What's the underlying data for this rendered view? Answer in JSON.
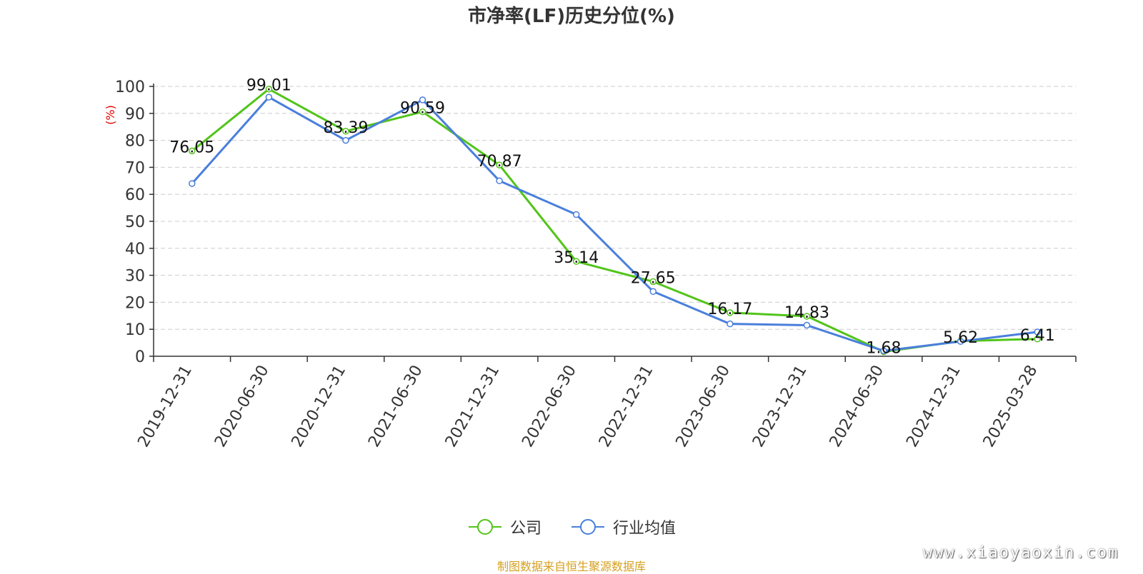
{
  "chart_data": {
    "type": "line",
    "title": "市净率(LF)历史分位(%)",
    "ylabel": "(%)",
    "xlabel": "",
    "ylim": [
      0,
      100
    ],
    "yticks": [
      0,
      10,
      20,
      30,
      40,
      50,
      60,
      70,
      80,
      90,
      100
    ],
    "categories": [
      "2019-12-31",
      "2020-06-30",
      "2020-12-31",
      "2021-06-30",
      "2021-12-31",
      "2022-06-30",
      "2022-12-31",
      "2023-06-30",
      "2023-12-31",
      "2024-06-30",
      "2024-12-31",
      "2025-03-28"
    ],
    "series": [
      {
        "name": "公司",
        "color": "#52c41a",
        "values": [
          76.05,
          99.01,
          83.39,
          90.59,
          70.87,
          35.14,
          27.65,
          16.17,
          14.83,
          1.68,
          5.62,
          6.41
        ],
        "labels": [
          "76.05",
          "99.01",
          "83.39",
          "90.59",
          "70.87",
          "35.14",
          "27.65",
          "16.17",
          "14.83",
          "1.68",
          "5.62",
          "6.41"
        ]
      },
      {
        "name": "行业均值",
        "color": "#4a7fdc",
        "values": [
          64.0,
          96.0,
          80.0,
          95.0,
          65.0,
          52.5,
          24.0,
          12.0,
          11.5,
          2.0,
          5.5,
          9.0
        ]
      }
    ],
    "grid": "dashed-horizontal",
    "legend_position": "bottom-center"
  },
  "source_note": "制图数据来自恒生聚源数据库",
  "watermark": "www.xiaoyaoxin.com"
}
